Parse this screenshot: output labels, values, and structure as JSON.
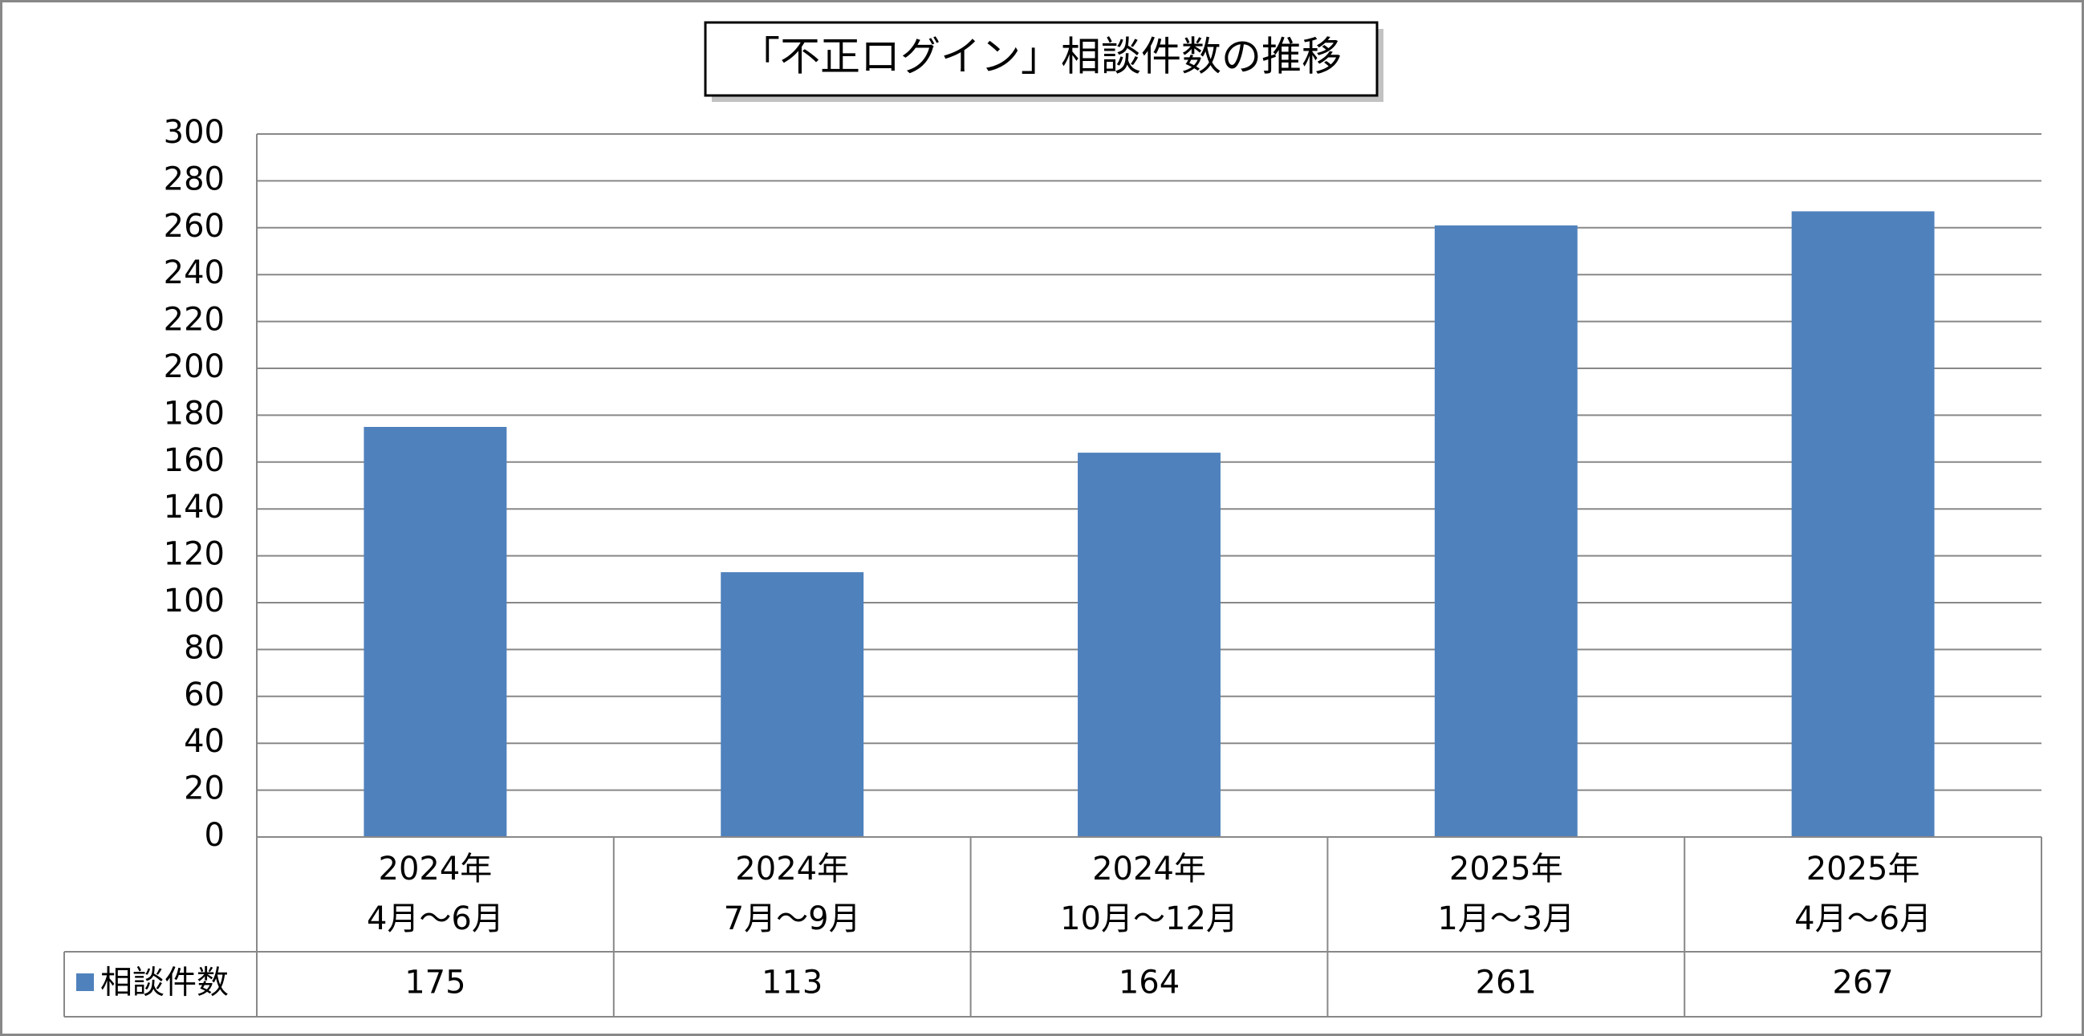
{
  "chart_data": {
    "type": "bar",
    "title": "「不正ログイン」相談件数の推移",
    "categories": [
      [
        "2024年",
        "4月～6月"
      ],
      [
        "2024年",
        "7月～9月"
      ],
      [
        "2024年",
        "10月～12月"
      ],
      [
        "2025年",
        "1月～3月"
      ],
      [
        "2025年",
        "4月～6月"
      ]
    ],
    "series": [
      {
        "name": "相談件数",
        "color": "#4f81bd",
        "values": [
          175,
          113,
          164,
          261,
          267
        ]
      }
    ],
    "ylim": [
      0,
      300
    ],
    "yticks": [
      0,
      20,
      40,
      60,
      80,
      100,
      120,
      140,
      160,
      180,
      200,
      220,
      240,
      260,
      280,
      300
    ],
    "grid": true,
    "data_table": true
  }
}
